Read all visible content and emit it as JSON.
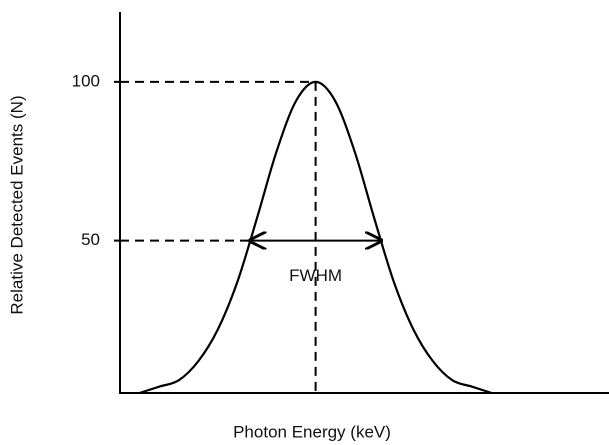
{
  "chart_data": {
    "type": "line",
    "y_label": "Relative  Detected Events (N)",
    "x_label": "Photon Energy (keV)",
    "x": [
      4,
      8,
      12,
      16,
      20,
      24,
      28,
      32,
      36,
      40,
      44,
      48,
      52,
      56,
      60,
      64,
      68,
      72,
      76
    ],
    "series": [
      {
        "color": "#000000",
        "values": [
          2,
          4,
          6,
          12,
          22,
          37,
          57,
          78,
          94,
          100,
          94,
          78,
          57,
          37,
          22,
          12,
          6,
          4,
          2
        ]
      }
    ],
    "xlim": [
      0,
      100
    ],
    "ylim": [
      2,
      122
    ],
    "yticks": [
      100,
      50
    ],
    "peak_x": 40,
    "fwhm": {
      "label": "FWHM",
      "x": [
        26.6,
        53.4
      ]
    },
    "grid": false
  }
}
